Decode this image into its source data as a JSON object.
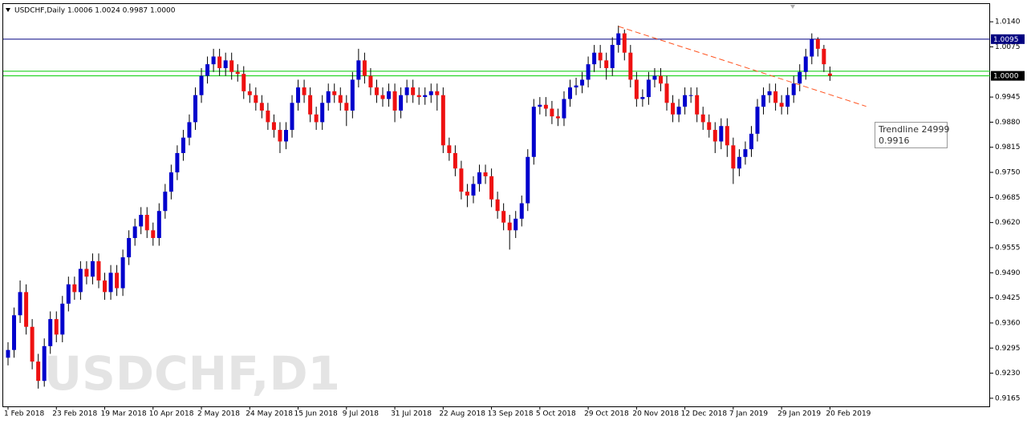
{
  "chart_data": {
    "type": "candlestick",
    "header": "USDCHF,Daily  1.0006 1.0024 0.9987 1.0000",
    "watermark": "USDCHF,D1",
    "up_color": "#0000cc",
    "down_color": "#ee1111",
    "ylim": [
      0.9144,
      1.0186
    ],
    "xlim": [
      -0.5,
      162
    ],
    "yticks": [
      {
        "value": 1.014,
        "label": "1.0140"
      },
      1.0075,
      0.9945,
      {
        "value": 0.988,
        "label": "0.9880"
      },
      0.9815,
      {
        "value": 0.975,
        "label": "0.9750"
      },
      0.9685,
      {
        "value": 0.962,
        "label": "0.9620"
      },
      0.9555,
      {
        "value": 0.949,
        "label": "0.9490"
      },
      0.9425,
      {
        "value": 0.936,
        "label": "0.9360"
      },
      0.9295,
      {
        "value": 0.923,
        "label": "0.9230"
      },
      0.9165
    ],
    "xticks": [
      {
        "value": 0,
        "label": "1 Feb 2018"
      },
      {
        "value": 8,
        "label": "23 Feb 2018"
      },
      {
        "value": 16,
        "label": "19 Mar 2018"
      },
      {
        "value": 24,
        "label": "10 Apr 2018"
      },
      {
        "value": 32,
        "label": "2 May 2018"
      },
      {
        "value": 40,
        "label": "24 May 2018"
      },
      {
        "value": 48,
        "label": "15 Jun 2018"
      },
      {
        "value": 56,
        "label": "9 Jul 2018"
      },
      {
        "value": 64,
        "label": "31 Jul 2018"
      },
      {
        "value": 72,
        "label": "22 Aug 2018"
      },
      {
        "value": 80,
        "label": "13 Sep 2018"
      },
      {
        "value": 88,
        "label": "5 Oct 2018"
      },
      {
        "value": 96,
        "label": "29 Oct 2018"
      },
      {
        "value": 104,
        "label": "20 Nov 2018"
      },
      {
        "value": 112,
        "label": "12 Dec 2018"
      },
      {
        "value": 120,
        "label": "7 Jan 2019"
      },
      {
        "value": 128,
        "label": "29 Jan 2019"
      },
      {
        "value": 136,
        "label": "20 Feb 2019"
      }
    ],
    "levels": [
      {
        "value": 1.0095,
        "label": "1.0095",
        "color": "#000080",
        "label_color": "#000080"
      },
      {
        "value": 1.0012,
        "color": "#00cc00"
      },
      {
        "value": 1.0,
        "label": "1.0000",
        "color": "#00cc00",
        "label_color": "#000000"
      }
    ],
    "trendline": {
      "name": "Trendline 24999",
      "tooltip": "0.9916",
      "color": "#ff5522",
      "x": [
        101,
        142
      ],
      "values": [
        1.0128,
        0.9921
      ]
    },
    "open": [
      0.927,
      0.929,
      0.938,
      0.944,
      0.935,
      0.926,
      0.921,
      0.93,
      0.937,
      0.933,
      0.941,
      0.946,
      0.944,
      0.95,
      0.948,
      0.952,
      0.947,
      0.944,
      0.949,
      0.945,
      0.953,
      0.958,
      0.961,
      0.964,
      0.96,
      0.958,
      0.965,
      0.97,
      0.975,
      0.98,
      0.984,
      0.988,
      0.995,
      1.0,
      1.003,
      1.005,
      1.002,
      1.004,
      1.001,
      1.0005,
      0.996,
      0.995,
      0.993,
      0.991,
      0.988,
      0.986,
      0.983,
      0.986,
      0.993,
      0.997,
      0.995,
      0.99,
      0.988,
      0.993,
      0.996,
      0.995,
      0.993,
      0.991,
      0.999,
      1.004,
      1.0,
      0.997,
      0.995,
      0.994,
      0.996,
      0.991,
      0.995,
      0.997,
      0.995,
      0.9945,
      0.995,
      0.996,
      0.995,
      0.982,
      0.98,
      0.976,
      0.97,
      0.969,
      0.972,
      0.975,
      0.974,
      0.968,
      0.965,
      0.962,
      0.96,
      0.963,
      0.967,
      0.979,
      0.992,
      0.9925,
      0.9915,
      0.9895,
      0.989,
      0.994,
      0.997,
      0.9975,
      0.999,
      1.003,
      1.006,
      1.004,
      1.002,
      1.008,
      1.011,
      1.006,
      0.999,
      0.994,
      0.9945,
      0.999,
      1.0,
      0.998,
      0.993,
      0.99,
      0.992,
      0.995,
      0.995,
      0.99,
      0.988,
      0.986,
      0.983,
      0.987,
      0.982,
      0.976,
      0.979,
      0.981,
      0.985,
      0.992,
      0.995,
      0.996,
      0.993,
      0.992,
      0.995,
      0.998,
      1.001,
      1.005,
      1.0095,
      1.007,
      1.0006
    ],
    "high": [
      0.931,
      0.94,
      0.947,
      0.946,
      0.937,
      0.928,
      0.932,
      0.939,
      0.939,
      0.943,
      0.948,
      0.948,
      0.952,
      0.952,
      0.954,
      0.954,
      0.949,
      0.951,
      0.951,
      0.955,
      0.96,
      0.963,
      0.966,
      0.966,
      0.962,
      0.967,
      0.972,
      0.977,
      0.982,
      0.986,
      0.99,
      0.997,
      1.002,
      1.005,
      1.007,
      1.007,
      1.006,
      1.006,
      1.003,
      1.0025,
      0.998,
      0.997,
      0.995,
      0.993,
      0.99,
      0.988,
      0.988,
      0.995,
      0.999,
      0.999,
      0.997,
      0.992,
      0.995,
      0.998,
      0.998,
      0.997,
      0.995,
      1.001,
      1.007,
      1.006,
      1.002,
      0.999,
      0.997,
      0.998,
      0.998,
      0.997,
      0.999,
      0.999,
      0.997,
      0.997,
      0.998,
      0.998,
      0.997,
      0.984,
      0.982,
      0.978,
      0.972,
      0.974,
      0.977,
      0.977,
      0.976,
      0.97,
      0.967,
      0.964,
      0.965,
      0.969,
      0.981,
      0.994,
      0.9945,
      0.9945,
      0.9935,
      0.9915,
      0.996,
      0.999,
      0.9995,
      1.001,
      1.005,
      1.008,
      1.008,
      1.006,
      1.01,
      1.013,
      1.012,
      1.008,
      1.001,
      0.9965,
      1.001,
      1.002,
      1.002,
      1.0,
      0.995,
      0.994,
      0.997,
      0.997,
      0.997,
      0.992,
      0.99,
      0.988,
      0.989,
      0.989,
      0.984,
      0.981,
      0.983,
      0.987,
      0.994,
      0.997,
      0.998,
      0.998,
      0.995,
      0.997,
      1.0,
      1.003,
      1.007,
      1.011,
      1.01,
      1.008,
      1.0024
    ],
    "low": [
      0.925,
      0.927,
      0.936,
      0.933,
      0.924,
      0.919,
      0.9195,
      0.928,
      0.931,
      0.931,
      0.939,
      0.942,
      0.942,
      0.946,
      0.946,
      0.945,
      0.942,
      0.942,
      0.943,
      0.943,
      0.951,
      0.956,
      0.959,
      0.958,
      0.956,
      0.956,
      0.963,
      0.968,
      0.973,
      0.978,
      0.982,
      0.986,
      0.993,
      0.998,
      1.001,
      1.0,
      1.0,
      0.999,
      0.9985,
      0.994,
      0.993,
      0.991,
      0.989,
      0.986,
      0.984,
      0.98,
      0.981,
      0.984,
      0.991,
      0.993,
      0.988,
      0.986,
      0.986,
      0.991,
      0.993,
      0.991,
      0.987,
      0.989,
      0.997,
      0.998,
      0.995,
      0.993,
      0.992,
      0.992,
      0.988,
      0.989,
      0.993,
      0.993,
      0.9925,
      0.9925,
      0.993,
      0.991,
      0.98,
      0.978,
      0.974,
      0.968,
      0.966,
      0.967,
      0.97,
      0.972,
      0.966,
      0.963,
      0.96,
      0.955,
      0.958,
      0.961,
      0.965,
      0.977,
      0.99,
      0.9895,
      0.9875,
      0.987,
      0.987,
      0.992,
      0.995,
      0.9955,
      0.997,
      1.001,
      1.002,
      0.999,
      1.0,
      1.006,
      1.004,
      0.997,
      0.992,
      0.992,
      0.9925,
      0.997,
      0.996,
      0.991,
      0.988,
      0.988,
      0.99,
      0.993,
      0.988,
      0.986,
      0.984,
      0.98,
      0.981,
      0.979,
      0.972,
      0.974,
      0.977,
      0.979,
      0.983,
      0.99,
      0.993,
      0.991,
      0.99,
      0.99,
      0.993,
      0.996,
      0.999,
      1.003,
      1.005,
      1.001,
      0.9987
    ],
    "close": [
      0.929,
      0.938,
      0.944,
      0.935,
      0.926,
      0.921,
      0.93,
      0.937,
      0.933,
      0.941,
      0.946,
      0.944,
      0.95,
      0.948,
      0.952,
      0.947,
      0.944,
      0.949,
      0.945,
      0.953,
      0.958,
      0.961,
      0.964,
      0.96,
      0.958,
      0.965,
      0.97,
      0.975,
      0.98,
      0.984,
      0.988,
      0.995,
      1.0,
      1.003,
      1.005,
      1.002,
      1.004,
      1.001,
      1.0005,
      0.996,
      0.995,
      0.993,
      0.991,
      0.988,
      0.986,
      0.983,
      0.986,
      0.993,
      0.997,
      0.995,
      0.99,
      0.988,
      0.993,
      0.996,
      0.995,
      0.993,
      0.991,
      0.999,
      1.004,
      1.0,
      0.997,
      0.995,
      0.994,
      0.996,
      0.991,
      0.995,
      0.997,
      0.995,
      0.9945,
      0.995,
      0.996,
      0.995,
      0.982,
      0.98,
      0.976,
      0.97,
      0.969,
      0.972,
      0.975,
      0.974,
      0.968,
      0.965,
      0.962,
      0.96,
      0.963,
      0.967,
      0.979,
      0.992,
      0.9925,
      0.9915,
      0.9895,
      0.989,
      0.994,
      0.997,
      0.9975,
      0.999,
      1.003,
      1.006,
      1.004,
      1.002,
      1.008,
      1.011,
      1.006,
      0.999,
      0.994,
      0.9945,
      0.999,
      1.0,
      0.998,
      0.993,
      0.99,
      0.992,
      0.995,
      0.995,
      0.99,
      0.988,
      0.986,
      0.983,
      0.987,
      0.982,
      0.976,
      0.979,
      0.981,
      0.985,
      0.992,
      0.995,
      0.996,
      0.993,
      0.992,
      0.995,
      0.998,
      1.001,
      1.005,
      1.0095,
      1.007,
      1.003,
      1.0
    ]
  }
}
